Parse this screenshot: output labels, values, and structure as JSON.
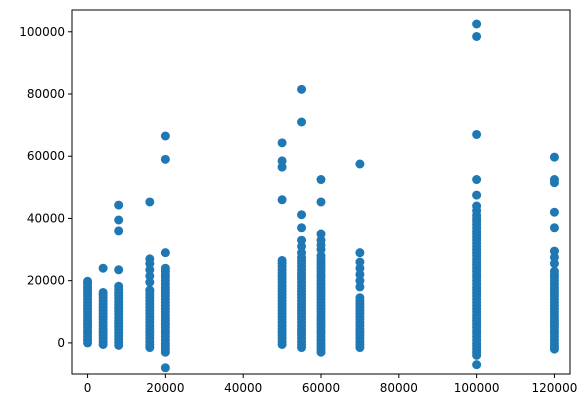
{
  "chart_data": {
    "type": "scatter",
    "title": "",
    "xlabel": "",
    "ylabel": "",
    "xlim": [
      -4000,
      124000
    ],
    "ylim": [
      -10000,
      107000
    ],
    "xticks": [
      0,
      20000,
      40000,
      60000,
      80000,
      100000,
      120000
    ],
    "yticks": [
      0,
      20000,
      40000,
      60000,
      80000,
      100000
    ],
    "xtick_labels": [
      "0",
      "20000",
      "40000",
      "60000",
      "80000",
      "100000",
      "120000"
    ],
    "ytick_labels": [
      "0",
      "20000",
      "40000",
      "60000",
      "80000",
      "100000"
    ],
    "grid": false,
    "marker_color": "#1f77b4",
    "series": [
      {
        "columns": [
          {
            "x": 0,
            "y": [
              0,
              1000,
              2000,
              3000,
              4000,
              5000,
              6000,
              7000,
              8000,
              9000,
              10000,
              11000,
              12000,
              13000,
              14000,
              15000,
              16000,
              17000,
              18000,
              19000,
              19800
            ]
          },
          {
            "x": 4000,
            "y": [
              -500,
              500,
              1500,
              2500,
              3500,
              4500,
              5500,
              6500,
              7500,
              8500,
              9500,
              10500,
              11500,
              12500,
              13500,
              14500,
              15500,
              16200,
              24000
            ]
          },
          {
            "x": 8000,
            "y": [
              -800,
              200,
              1200,
              2200,
              3200,
              4200,
              5200,
              6200,
              7200,
              8200,
              9200,
              10200,
              11200,
              12200,
              13200,
              14200,
              15200,
              16200,
              17200,
              18200,
              23500,
              36000,
              39500,
              44300
            ]
          },
          {
            "x": 16000,
            "y": [
              -1500,
              -500,
              500,
              1500,
              2500,
              3500,
              4500,
              5500,
              6500,
              7500,
              8500,
              9500,
              10500,
              11500,
              12500,
              13500,
              14500,
              15500,
              16500,
              17000,
              19500,
              21500,
              23500,
              25500,
              27000,
              45300
            ]
          },
          {
            "x": 20000,
            "y": [
              -8000,
              -3000,
              -2000,
              -1000,
              0,
              1000,
              2000,
              3000,
              4000,
              5000,
              6000,
              7000,
              8000,
              9000,
              10000,
              11000,
              12000,
              13000,
              14000,
              15000,
              16000,
              17000,
              18000,
              19000,
              20000,
              21000,
              22000,
              23000,
              24000,
              29000,
              59000,
              66500
            ]
          },
          {
            "x": 50000,
            "y": [
              -500,
              500,
              1500,
              2500,
              3500,
              4500,
              5500,
              6500,
              7500,
              8500,
              9500,
              10500,
              11500,
              12500,
              13500,
              14500,
              15500,
              16500,
              17500,
              18500,
              19500,
              20500,
              21500,
              22500,
              23500,
              24500,
              25500,
              26500,
              46000,
              56500,
              58500,
              64300
            ]
          },
          {
            "x": 55000,
            "y": [
              -1500,
              -500,
              500,
              1500,
              2500,
              3500,
              4500,
              5500,
              6500,
              7500,
              8500,
              9500,
              10500,
              11500,
              12500,
              13500,
              14500,
              15500,
              16500,
              17500,
              18500,
              19500,
              20500,
              21500,
              22500,
              23500,
              24500,
              25500,
              26500,
              27500,
              29000,
              31000,
              33000,
              37000,
              41200,
              71000,
              81500
            ]
          },
          {
            "x": 60000,
            "y": [
              -3000,
              -2000,
              -1000,
              0,
              1000,
              2000,
              3000,
              4000,
              5000,
              6000,
              7000,
              8000,
              9000,
              10000,
              11000,
              12000,
              13000,
              14000,
              15000,
              16000,
              17000,
              18000,
              19000,
              20000,
              21000,
              22000,
              23000,
              24000,
              25000,
              26000,
              27000,
              28000,
              30000,
              31500,
              33000,
              35000,
              45300,
              52500
            ]
          },
          {
            "x": 70000,
            "y": [
              -1500,
              -500,
              500,
              1500,
              2500,
              3500,
              4500,
              5500,
              6500,
              7500,
              8500,
              9500,
              10500,
              11500,
              12500,
              13500,
              14500,
              18000,
              20000,
              22000,
              24000,
              26000,
              29000,
              57500
            ]
          },
          {
            "x": 100000,
            "y": [
              -7000,
              -4000,
              -3000,
              -2000,
              -1000,
              0,
              1000,
              2000,
              3000,
              4000,
              5000,
              6000,
              7000,
              8000,
              9000,
              10000,
              11000,
              12000,
              13000,
              14000,
              15000,
              16000,
              17000,
              18000,
              19000,
              20000,
              21000,
              22000,
              23000,
              24000,
              25000,
              26000,
              27000,
              28000,
              29000,
              30000,
              31000,
              32000,
              33000,
              34000,
              35000,
              36000,
              37000,
              38000,
              39000,
              40000,
              41000,
              42500,
              44000,
              47500,
              52500,
              67000,
              98500,
              102500
            ]
          },
          {
            "x": 120000,
            "y": [
              -2000,
              -1000,
              0,
              1000,
              2000,
              3000,
              4000,
              5000,
              6000,
              7000,
              8000,
              9000,
              10000,
              11000,
              12000,
              13000,
              14000,
              15000,
              16000,
              17000,
              18000,
              19000,
              20000,
              21000,
              22000,
              23000,
              25500,
              27500,
              29500,
              37000,
              42000,
              51500,
              52500,
              59700
            ]
          }
        ]
      }
    ]
  }
}
